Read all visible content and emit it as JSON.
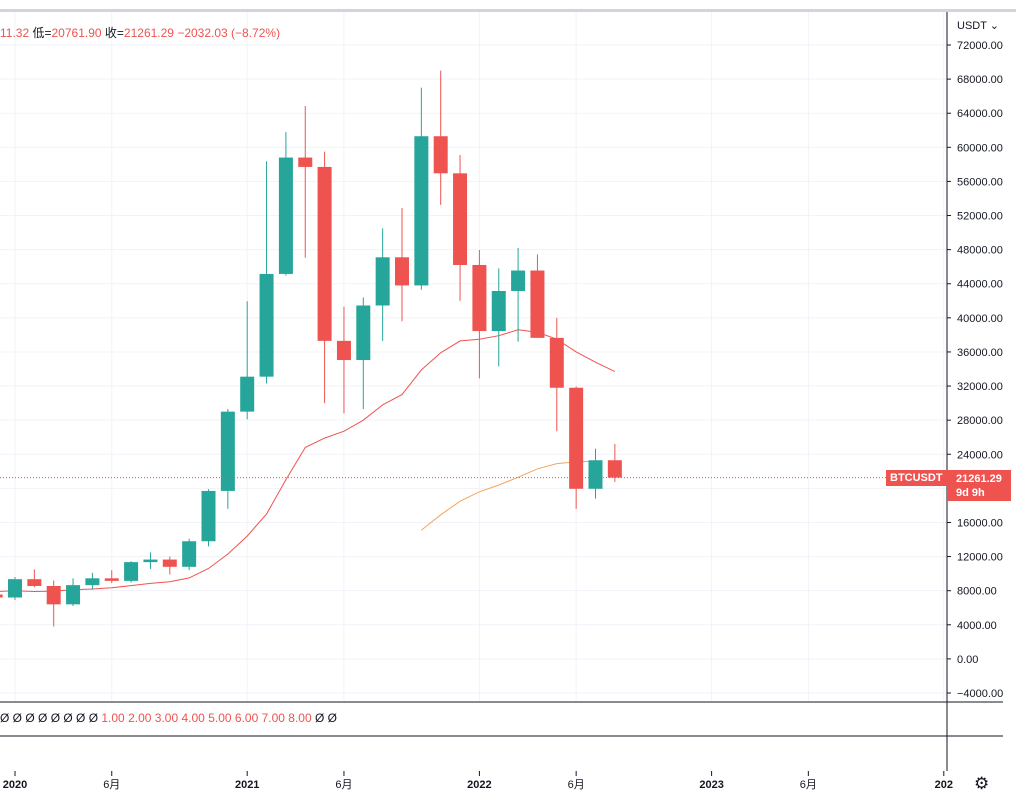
{
  "header": {
    "high_fragment": "11.32",
    "low_label": "低=",
    "low_value": "20761.90",
    "close_label": "收=",
    "close_value": "21261.29",
    "change": "−2032.03 (−8.72%)"
  },
  "price_scale": {
    "currency": "USDT ⌄"
  },
  "current_price": {
    "symbol": "BTCUSDT",
    "price": "21261.29",
    "countdown": "9d 9h"
  },
  "indicator_values": {
    "zeros": [
      "Ø",
      "Ø",
      "Ø",
      "Ø",
      "Ø",
      "Ø",
      "Ø",
      "Ø"
    ],
    "values": [
      "1.00",
      "2.00",
      "3.00",
      "4.00",
      "5.00",
      "6.00",
      "7.00",
      "8.00"
    ],
    "trailing": [
      "Ø",
      "Ø"
    ]
  },
  "settings_icon": "gear-icon",
  "chart_data": {
    "type": "candlestick",
    "symbol": "BTCUSDT",
    "interval": "1M",
    "ylim": [
      -4000,
      72000
    ],
    "y_ticks": [
      -4000,
      0,
      4000,
      8000,
      12000,
      16000,
      20000,
      24000,
      28000,
      32000,
      36000,
      40000,
      44000,
      48000,
      52000,
      56000,
      60000,
      64000,
      68000,
      72000
    ],
    "x_ticks": [
      {
        "label": "2020",
        "month": "2020-01"
      },
      {
        "label": "6月",
        "month": "2020-06"
      },
      {
        "label": "2021",
        "month": "2021-01"
      },
      {
        "label": "6月",
        "month": "2021-06"
      },
      {
        "label": "2022",
        "month": "2022-01"
      },
      {
        "label": "6月",
        "month": "2022-06"
      },
      {
        "label": "2023",
        "month": "2023-01"
      },
      {
        "label": "6月",
        "month": "2023-06"
      },
      {
        "label": "202",
        "month": "2024-01"
      }
    ],
    "candles": [
      {
        "date": "2019-12",
        "open": 7550,
        "high": 7700,
        "low": 6900,
        "close": 7200
      },
      {
        "date": "2020-01",
        "open": 7200,
        "high": 9600,
        "low": 6900,
        "close": 9350
      },
      {
        "date": "2020-02",
        "open": 9350,
        "high": 10500,
        "low": 8400,
        "close": 8550
      },
      {
        "date": "2020-03",
        "open": 8550,
        "high": 9200,
        "low": 3800,
        "close": 6400
      },
      {
        "date": "2020-04",
        "open": 6400,
        "high": 9450,
        "low": 6200,
        "close": 8650
      },
      {
        "date": "2020-05",
        "open": 8650,
        "high": 10100,
        "low": 8100,
        "close": 9450
      },
      {
        "date": "2020-06",
        "open": 9450,
        "high": 10400,
        "low": 8900,
        "close": 9150
      },
      {
        "date": "2020-07",
        "open": 9150,
        "high": 11450,
        "low": 8950,
        "close": 11350
      },
      {
        "date": "2020-08",
        "open": 11350,
        "high": 12500,
        "low": 10550,
        "close": 11650
      },
      {
        "date": "2020-09",
        "open": 11650,
        "high": 12000,
        "low": 9900,
        "close": 10800
      },
      {
        "date": "2020-10",
        "open": 10800,
        "high": 14100,
        "low": 10400,
        "close": 13800
      },
      {
        "date": "2020-11",
        "open": 13800,
        "high": 19900,
        "low": 13200,
        "close": 19700
      },
      {
        "date": "2020-12",
        "open": 19700,
        "high": 29300,
        "low": 17600,
        "close": 29000
      },
      {
        "date": "2021-01",
        "open": 29000,
        "high": 41950,
        "low": 28100,
        "close": 33100
      },
      {
        "date": "2021-02",
        "open": 33100,
        "high": 58350,
        "low": 32300,
        "close": 45150
      },
      {
        "date": "2021-03",
        "open": 45150,
        "high": 61800,
        "low": 44950,
        "close": 58800
      },
      {
        "date": "2021-04",
        "open": 58800,
        "high": 64850,
        "low": 47050,
        "close": 57700
      },
      {
        "date": "2021-05",
        "open": 57700,
        "high": 59500,
        "low": 30000,
        "close": 37300
      },
      {
        "date": "2021-06",
        "open": 37300,
        "high": 41300,
        "low": 28800,
        "close": 35050
      },
      {
        "date": "2021-07",
        "open": 35050,
        "high": 42400,
        "low": 29300,
        "close": 41450
      },
      {
        "date": "2021-08",
        "open": 41450,
        "high": 50500,
        "low": 37300,
        "close": 47100
      },
      {
        "date": "2021-09",
        "open": 47100,
        "high": 52900,
        "low": 39600,
        "close": 43800
      },
      {
        "date": "2021-10",
        "open": 43800,
        "high": 67000,
        "low": 43300,
        "close": 61300
      },
      {
        "date": "2021-11",
        "open": 61300,
        "high": 69000,
        "low": 53250,
        "close": 56950
      },
      {
        "date": "2021-12",
        "open": 56950,
        "high": 59100,
        "low": 42000,
        "close": 46200
      },
      {
        "date": "2022-01",
        "open": 46200,
        "high": 47950,
        "low": 32900,
        "close": 38450
      },
      {
        "date": "2022-02",
        "open": 38450,
        "high": 45800,
        "low": 34300,
        "close": 43150
      },
      {
        "date": "2022-03",
        "open": 43150,
        "high": 48200,
        "low": 37200,
        "close": 45550
      },
      {
        "date": "2022-04",
        "open": 45550,
        "high": 47450,
        "low": 37700,
        "close": 37650
      },
      {
        "date": "2022-05",
        "open": 37650,
        "high": 40000,
        "low": 26700,
        "close": 31800
      },
      {
        "date": "2022-06",
        "open": 31800,
        "high": 31950,
        "low": 17600,
        "close": 19950
      },
      {
        "date": "2022-07",
        "open": 19950,
        "high": 24650,
        "low": 18800,
        "close": 23300
      },
      {
        "date": "2022-08",
        "open": 23300,
        "high": 25200,
        "low": 20761.9,
        "close": 21261.29
      }
    ],
    "overlays": [
      {
        "name": "",
        "color": "#ef5350",
        "points": [
          [
            "2019-12",
            7900
          ],
          [
            "2020-01",
            8000
          ],
          [
            "2020-02",
            7900
          ],
          [
            "2020-03",
            7950
          ],
          [
            "2020-04",
            8100
          ],
          [
            "2020-05",
            8200
          ],
          [
            "2020-06",
            8350
          ],
          [
            "2020-07",
            8600
          ],
          [
            "2020-08",
            8850
          ],
          [
            "2020-09",
            9050
          ],
          [
            "2020-10",
            9500
          ],
          [
            "2020-11",
            10600
          ],
          [
            "2020-12",
            12300
          ],
          [
            "2021-01",
            14400
          ],
          [
            "2021-02",
            17000
          ],
          [
            "2021-03",
            21000
          ],
          [
            "2021-04",
            24800
          ],
          [
            "2021-05",
            25900
          ],
          [
            "2021-06",
            26700
          ],
          [
            "2021-07",
            28000
          ],
          [
            "2021-08",
            29800
          ],
          [
            "2021-09",
            31000
          ],
          [
            "2021-10",
            33900
          ],
          [
            "2021-11",
            35900
          ],
          [
            "2021-12",
            37300
          ],
          [
            "2022-01",
            37500
          ],
          [
            "2022-02",
            37900
          ],
          [
            "2022-03",
            38600
          ],
          [
            "2022-04",
            38300
          ],
          [
            "2022-05",
            37500
          ],
          [
            "2022-06",
            36000
          ],
          [
            "2022-07",
            34800
          ],
          [
            "2022-08",
            33700
          ]
        ]
      },
      {
        "name": "",
        "color": "#f7a35c",
        "points": [
          [
            "2021-10",
            15100
          ],
          [
            "2021-11",
            16900
          ],
          [
            "2021-12",
            18500
          ],
          [
            "2022-01",
            19600
          ],
          [
            "2022-02",
            20400
          ],
          [
            "2022-03",
            21300
          ],
          [
            "2022-04",
            22300
          ],
          [
            "2022-05",
            22900
          ],
          [
            "2022-06",
            23100
          ],
          [
            "2022-07",
            23200
          ]
        ]
      }
    ],
    "grid": true,
    "colors": {
      "up": "#26a69a",
      "down": "#ef5350"
    }
  }
}
